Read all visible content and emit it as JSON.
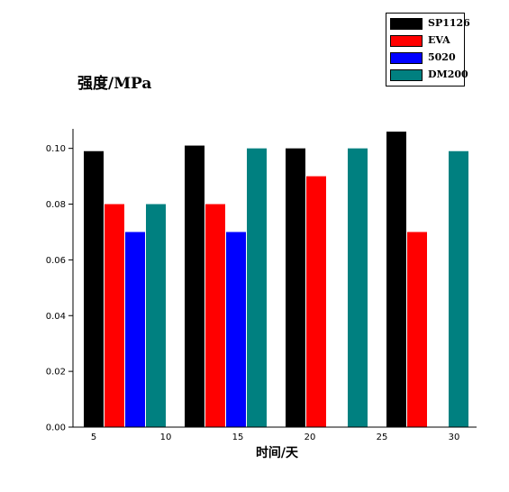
{
  "chart_data": {
    "type": "bar",
    "ylabel": "强度/MPa",
    "xlabel": "时间/天",
    "ylim": [
      0,
      0.107
    ],
    "yticks": [
      "0.00",
      "0.02",
      "0.04",
      "0.06",
      "0.08",
      "0.10"
    ],
    "xtick_labels": [
      "5",
      "10",
      "15",
      "20",
      "25",
      "30"
    ],
    "groups": 4,
    "legend_position": "top-right",
    "grid": false,
    "series": [
      {
        "name": "SP1126",
        "color": "#000000",
        "values": [
          0.099,
          0.101,
          0.1,
          0.106
        ]
      },
      {
        "name": "EVA",
        "color": "#ff0000",
        "values": [
          0.08,
          0.08,
          0.09,
          0.07
        ]
      },
      {
        "name": "5020",
        "color": "#0000ff",
        "values": [
          0.07,
          0.07,
          null,
          null
        ]
      },
      {
        "name": "DM200",
        "color": "#008080",
        "values": [
          0.08,
          0.1,
          0.1,
          0.099
        ]
      }
    ]
  }
}
